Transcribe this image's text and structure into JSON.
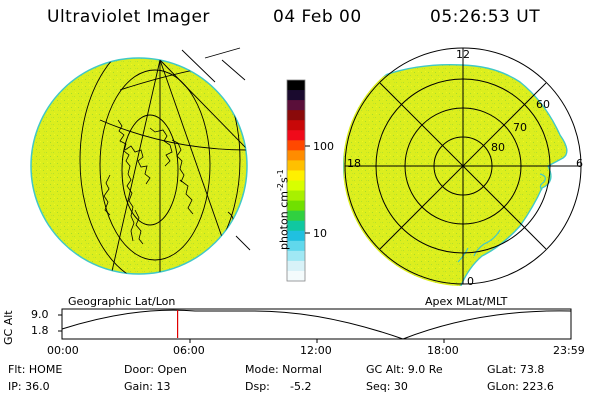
{
  "header": {
    "instrument": "Ultraviolet Imager",
    "date": "04 Feb 00",
    "time": "05:26:53 UT"
  },
  "left_panel": {
    "caption": "Geographic Lat/Lon"
  },
  "right_panel": {
    "caption": "Apex MLat/MLT",
    "mlt_labels": [
      "12",
      "18",
      "6",
      "0"
    ],
    "lat_labels": [
      "60",
      "70",
      "80"
    ]
  },
  "colorbar": {
    "unit_main": "photon cm",
    "unit_exp": "-2",
    "unit_s": "s",
    "unit_exp2": "-1",
    "ticks": [
      "100",
      "10"
    ],
    "colors": [
      "#000000",
      "#1a0a2e",
      "#5a0f3a",
      "#8a0a0a",
      "#c80808",
      "#f00a1a",
      "#ff4800",
      "#ff8c00",
      "#ffc000",
      "#fff000",
      "#d8ff00",
      "#a8f000",
      "#70e000",
      "#30d040",
      "#10c8a0",
      "#20c0e0",
      "#60d8ec",
      "#a0e8f4",
      "#d8f2f8",
      "#f4fbfc"
    ]
  },
  "timeline": {
    "axis_label": "GC Alt",
    "y_max": "9.0",
    "y_min": "1.8",
    "x_ticks": [
      "00:00",
      "06:00",
      "12:00",
      "18:00",
      "23:59"
    ],
    "current_time_hours": 5.45
  },
  "status": {
    "flt": "Flt: HOME",
    "ip": "IP: 36.0",
    "door": "Door: Open",
    "gain": "Gain: 13",
    "mode": "Mode: Normal",
    "dsp_label": "Dsp:",
    "dsp_value": "-5.2",
    "gc_alt": "GC Alt: 9.0 Re",
    "seq": "Seq: 30",
    "glat": "GLat:  73.8",
    "glon": "GLon: 223.6"
  },
  "colors": {
    "emission": "#dcee1e",
    "speckle": "#a0d82a",
    "earth_edge": "#30c8d0",
    "marker": "#e00000"
  }
}
